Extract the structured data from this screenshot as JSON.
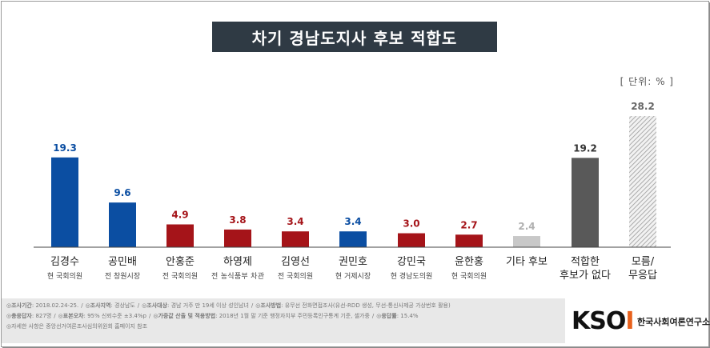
{
  "title": "차기 경남도지사 후보 적합도",
  "unit": "[ 단위: % ]",
  "chart_data": {
    "type": "bar",
    "title": "차기 경남도지사 후보 적합도",
    "ylim": [
      0,
      30
    ],
    "grid": false,
    "categories": [
      "김경수",
      "공민배",
      "안홍준",
      "하영제",
      "김영선",
      "권민호",
      "강민국",
      "윤한홍",
      "기타 후보",
      "적합한 후보가 없다",
      "모름/ 무응답"
    ],
    "category_lines": [
      [
        "김경수"
      ],
      [
        "공민배"
      ],
      [
        "안홍준"
      ],
      [
        "하영제"
      ],
      [
        "김영선"
      ],
      [
        "권민호"
      ],
      [
        "강민국"
      ],
      [
        "윤한홍"
      ],
      [
        "기타 후보"
      ],
      [
        "적합한",
        "후보가 없다"
      ],
      [
        "모름/",
        "무응답"
      ]
    ],
    "subtitles": [
      "현 국회의원",
      "전 창원시장",
      "전 국회의원",
      "전 농식품부 차관",
      "전 국회의원",
      "현 거제시장",
      "현 경남도의원",
      "현 국회의원",
      "",
      "",
      ""
    ],
    "values": [
      19.3,
      9.6,
      4.9,
      3.8,
      3.4,
      3.4,
      3.0,
      2.7,
      2.4,
      19.2,
      28.2
    ],
    "value_labels": [
      "19.3",
      "9.6",
      "4.9",
      "3.8",
      "3.4",
      "3.4",
      "3.0",
      "2.7",
      "2.4",
      "19.2",
      "28.2"
    ],
    "colors": [
      "#0b4ea2",
      "#0b4ea2",
      "#a51419",
      "#a51419",
      "#a51419",
      "#0b4ea2",
      "#a51419",
      "#a51419",
      "#c8c8c8",
      "#595959",
      "hatch"
    ],
    "label_colors": [
      "#0b4ea2",
      "#0b4ea2",
      "#a51419",
      "#a51419",
      "#a51419",
      "#0b4ea2",
      "#a51419",
      "#a51419",
      "#b0b0b0",
      "#333333",
      "#666666"
    ]
  },
  "footer": {
    "line1": [
      {
        "k": "◎조사기간",
        "v": ": 2018.02.24-25."
      },
      {
        "k": "◎조사지역",
        "v": ": 경상남도"
      },
      {
        "k": "◎조사대상",
        "v": ": 경남 거주 만 19세 이상 성인남녀"
      },
      {
        "k": "◎조사방법",
        "v": ": 유무선 전화면접조사(유선-RDD 생성, 무선-통신사제공 가상번호 활용)"
      }
    ],
    "line2": [
      {
        "k": "◎총응답자",
        "v": ": 827명"
      },
      {
        "k": "◎표본오차",
        "v": ": 95% 신뢰수준 ±3.4%p"
      },
      {
        "k": "◎가중값 산출 및 적용방법",
        "v": ": 2018년 1월 말 기준 행정자치부 주민등록인구통계 기준, 셀가중"
      },
      {
        "k": "◎응답률",
        "v": ": 15.4%"
      }
    ],
    "line3": "◎자세한 사항은 중앙선거여론조사심의위원회 홈페이지 참조"
  },
  "logo": {
    "brand_k": "KSO",
    "brand_i": "I",
    "name": "한국사회여론연구소",
    "accent": "#e8611c"
  }
}
